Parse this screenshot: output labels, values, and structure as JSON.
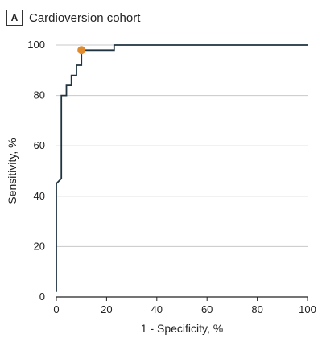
{
  "panel": {
    "badge": "A",
    "title": "Cardioversion cohort"
  },
  "chart_data": {
    "type": "line",
    "title": "Cardioversion cohort",
    "xlabel": "1 - Specificity, %",
    "ylabel": "Sensitivity, %",
    "xlim": [
      0,
      100
    ],
    "ylim": [
      0,
      100
    ],
    "xticks": [
      0,
      20,
      40,
      60,
      80,
      100
    ],
    "yticks": [
      0,
      20,
      40,
      60,
      80,
      100
    ],
    "grid": "horizontal",
    "series": [
      {
        "color": "#1f3340",
        "x": [
          0,
          0,
          2,
          2,
          4,
          4,
          6,
          6,
          8,
          8,
          10,
          10,
          23,
          23,
          100
        ],
        "y": [
          2,
          45,
          47,
          80,
          80,
          84,
          84,
          88,
          88,
          92,
          92,
          98,
          98,
          100,
          100
        ]
      }
    ],
    "highlight_point": {
      "x": 10,
      "y": 98,
      "color": "#e08b2e"
    }
  }
}
